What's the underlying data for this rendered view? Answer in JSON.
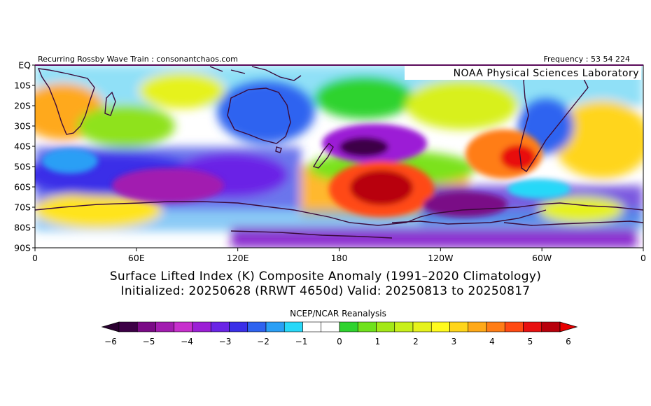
{
  "header": {
    "left_text": "Recurring Rossby Wave Train : consonantchaos.com",
    "right_text": "Frequency : 53 54 224"
  },
  "watermark": "NOAA Physical Sciences Laboratory",
  "title": {
    "line1": "Surface Lifted Index (K) Composite Anomaly (1991–2020 Climatology)",
    "line2": "Initialized: 20250628 (RRWT 4650d) Valid: 20250813 to 20250817"
  },
  "dataset_label": "NCEP/NCAR Reanalysis",
  "map": {
    "lat_labels": [
      "EQ",
      "10S",
      "20S",
      "30S",
      "40S",
      "50S",
      "60S",
      "70S",
      "80S",
      "90S"
    ],
    "lon_labels": [
      "0",
      "60E",
      "120E",
      "180",
      "120W",
      "60W",
      "0"
    ],
    "anomalies": [
      {
        "lon": 200,
        "lat": -62,
        "value": 6,
        "name": "warm-anomaly-south-pacific"
      },
      {
        "lon": 275,
        "lat": -46,
        "value": 5,
        "name": "warm-anomaly-south-america"
      },
      {
        "lon": 190,
        "lat": -38,
        "value": -5,
        "name": "cold-anomaly-north-of-warm"
      },
      {
        "lon": 60,
        "lat": -62,
        "value": -4,
        "name": "cold-anomaly-indian-ocean"
      },
      {
        "lon": 235,
        "lat": -70,
        "value": -4,
        "name": "cold-anomaly-amundsen"
      },
      {
        "lon": 120,
        "lat": -20,
        "value": -3,
        "name": "cold-anomaly-australia"
      },
      {
        "lon": 15,
        "lat": -22,
        "value": 3,
        "name": "warm-anomaly-south-africa"
      },
      {
        "lon": 290,
        "lat": -20,
        "value": -3,
        "name": "cold-anomaly-brazil"
      }
    ]
  },
  "colorbar": {
    "tick_labels": [
      "−6",
      "−5",
      "−4",
      "−3",
      "−2",
      "−1",
      "0",
      "1",
      "2",
      "3",
      "4",
      "5",
      "6"
    ],
    "colors": [
      "#3d0046",
      "#7a0a86",
      "#a21cb0",
      "#c72fcd",
      "#9c1fd6",
      "#6a24e6",
      "#3a2fe8",
      "#2e63f0",
      "#2a9ff5",
      "#28d8f8",
      "#ffffff",
      "#ffffff",
      "#2ed32e",
      "#6fe21c",
      "#a3e817",
      "#c8f01a",
      "#e6f21c",
      "#fffb1e",
      "#ffd51b",
      "#ffa918",
      "#ff7d16",
      "#ff4a13",
      "#e81010",
      "#b8000c"
    ]
  }
}
